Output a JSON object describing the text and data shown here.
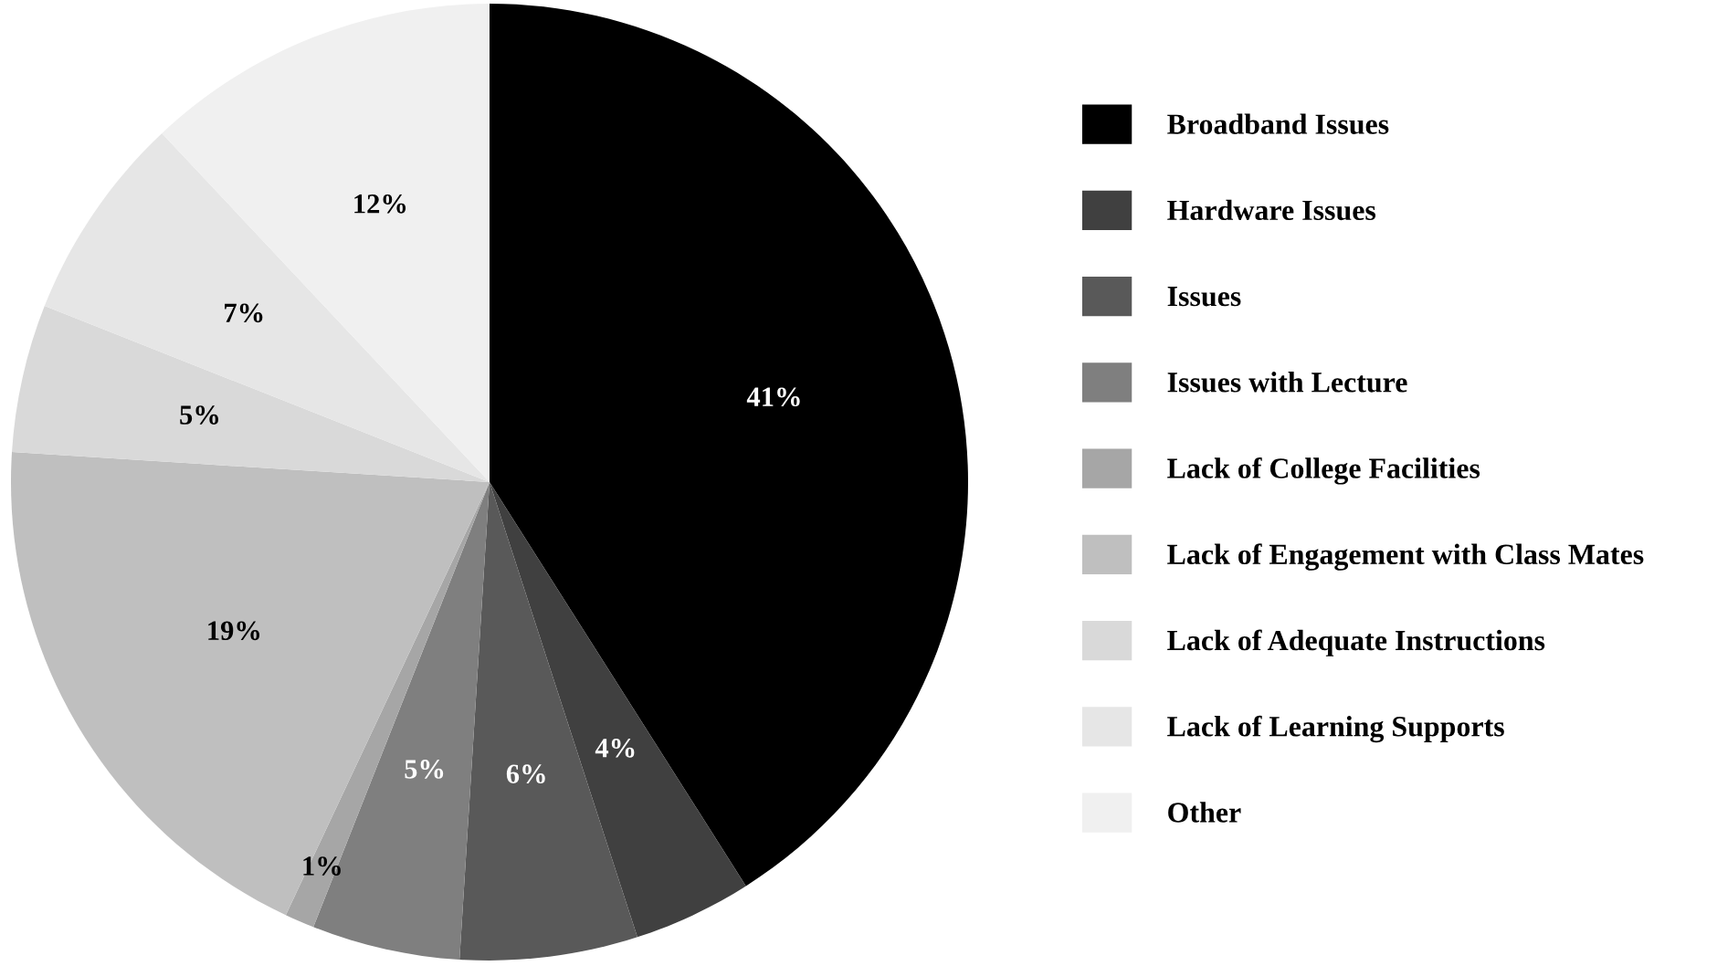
{
  "chart_data": {
    "type": "pie",
    "categories": [
      "Broadband Issues",
      "Hardware Issues",
      "Issues",
      "Issues with Lecture",
      "Lack of College Facilities",
      "Lack of Engagement with Class Mates",
      "Lack of Adequate Instructions",
      "Lack of Learning Supports",
      "Other"
    ],
    "values": [
      41,
      4,
      6,
      5,
      1,
      19,
      5,
      7,
      12
    ],
    "colors": [
      "#000000",
      "#404040",
      "#595959",
      "#7f7f7f",
      "#a6a6a6",
      "#bfbfbf",
      "#d9d9d9",
      "#e6e6e6",
      "#f0f0f0"
    ],
    "value_labels": [
      "41%",
      "4%",
      "6%",
      "5%",
      "1%",
      "19%",
      "5%",
      "7%",
      "12%"
    ],
    "legend": "right"
  }
}
